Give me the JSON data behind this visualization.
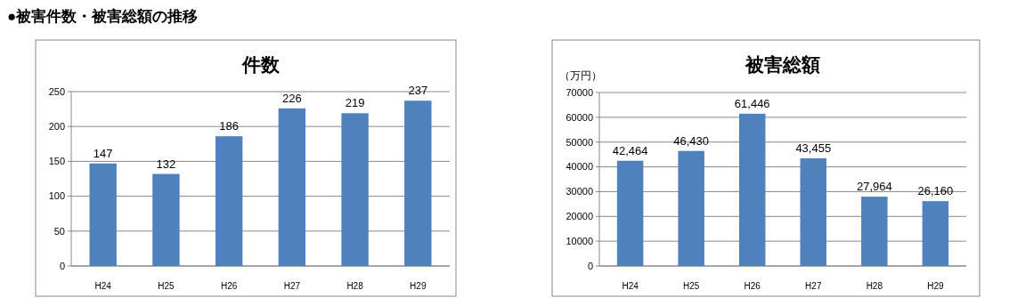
{
  "chart_data": [
    {
      "type": "bar",
      "title": "件数",
      "annotations": [
        "●被害件数・被害総額の推移"
      ],
      "categories": [
        "H24",
        "H25",
        "H26",
        "H27",
        "H28",
        "H29"
      ],
      "values": [
        147,
        132,
        186,
        226,
        219,
        237
      ],
      "color": "#4f81bd",
      "ylim": [
        0,
        250
      ],
      "yticks": [
        0,
        50,
        100,
        150,
        200,
        250
      ],
      "grid": "y",
      "data_labels": true
    },
    {
      "type": "bar",
      "title": "被害総額",
      "ylabel": "（万円）",
      "categories": [
        "H24",
        "H25",
        "H26",
        "H27",
        "H28",
        "H29"
      ],
      "values": [
        42464,
        46430,
        61446,
        43455,
        27964,
        26160
      ],
      "value_labels": [
        "42,464",
        "46,430",
        "61,446",
        "43,455",
        "27,964",
        "26,160"
      ],
      "color": "#4f81bd",
      "ylim": [
        0,
        70000
      ],
      "yticks": [
        0,
        10000,
        20000,
        30000,
        40000,
        50000,
        60000,
        70000
      ],
      "grid": "y"
    }
  ]
}
